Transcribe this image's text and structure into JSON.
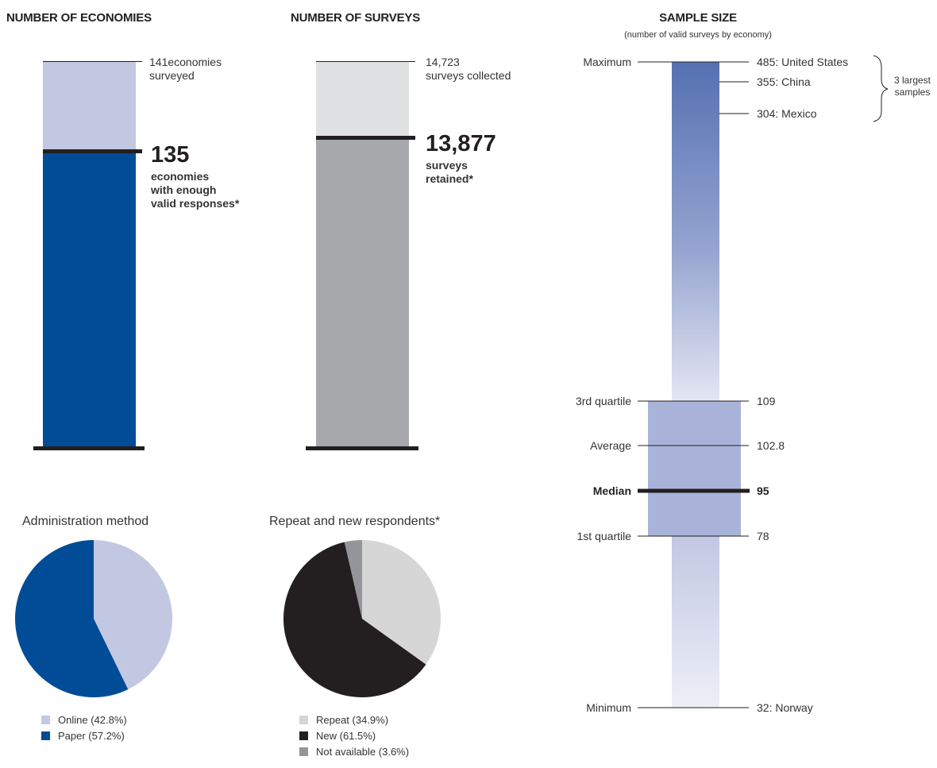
{
  "economies": {
    "heading": "NUMBER OF ECONOMIES",
    "surveyed_value": "141",
    "surveyed_unit": "economies",
    "surveyed_line2": "surveyed",
    "valid_value": "135",
    "valid_line1": "economies",
    "valid_line2": "with enough",
    "valid_line3": "valid responses*"
  },
  "surveys": {
    "heading": "NUMBER OF SURVEYS",
    "collected_value": "14,723",
    "collected_line2": "surveys collected",
    "retained_value": "13,877",
    "retained_line1": "surveys",
    "retained_line2": "retained*"
  },
  "sample": {
    "heading": "SAMPLE SIZE",
    "subheading": "(number of valid surveys by economy)",
    "bracket_line1": "3 largest",
    "bracket_line2": "samples",
    "left_labels": {
      "maximum": "Maximum",
      "q3": "3rd quartile",
      "average": "Average",
      "median": "Median",
      "q1": "1st quartile",
      "minimum": "Minimum"
    },
    "right_labels": {
      "max": "485: United States",
      "china": "355: China",
      "mexico": "304: Mexico",
      "q3": "109",
      "average": "102.8",
      "median": "95",
      "q1": "78",
      "min": "32: Norway"
    }
  },
  "pies": {
    "admin_title": "Administration method",
    "admin_legend": [
      "Online (42.8%)",
      "Paper (57.2%)"
    ],
    "repeat_title": "Repeat and new respondents*",
    "repeat_legend": [
      "Repeat (34.9%)",
      "New (61.5%)",
      "Not available (3.6%)"
    ]
  },
  "colors": {
    "dark_blue": "#004c97",
    "light_blue": "#c3c8e2",
    "box_blue": "#a9b3da",
    "gray_dark": "#a6a8ab",
    "gray_light": "#e0e1e3",
    "pie_light": "#d6d6d6",
    "black": "#231f20",
    "mid_gray": "#939598"
  },
  "chart_data": [
    {
      "type": "bar",
      "title": "NUMBER OF ECONOMIES",
      "categories": [
        "economies surveyed",
        "economies with enough valid responses*"
      ],
      "values": [
        141,
        135
      ]
    },
    {
      "type": "bar",
      "title": "NUMBER OF SURVEYS",
      "categories": [
        "surveys collected",
        "surveys retained*"
      ],
      "values": [
        14723,
        13877
      ]
    },
    {
      "type": "table",
      "title": "SAMPLE SIZE",
      "subtitle": "(number of valid surveys by economy)",
      "rows": [
        {
          "label": "Maximum",
          "value": 485,
          "economy": "United States"
        },
        {
          "label": "",
          "value": 355,
          "economy": "China"
        },
        {
          "label": "",
          "value": 304,
          "economy": "Mexico"
        },
        {
          "label": "3rd quartile",
          "value": 109
        },
        {
          "label": "Average",
          "value": 102.8
        },
        {
          "label": "Median",
          "value": 95
        },
        {
          "label": "1st quartile",
          "value": 78
        },
        {
          "label": "Minimum",
          "value": 32,
          "economy": "Norway"
        }
      ]
    },
    {
      "type": "pie",
      "title": "Administration method",
      "categories": [
        "Online",
        "Paper"
      ],
      "values": [
        42.8,
        57.2
      ]
    },
    {
      "type": "pie",
      "title": "Repeat and new respondents*",
      "categories": [
        "Repeat",
        "New",
        "Not available"
      ],
      "values": [
        34.9,
        61.5,
        3.6
      ]
    }
  ]
}
